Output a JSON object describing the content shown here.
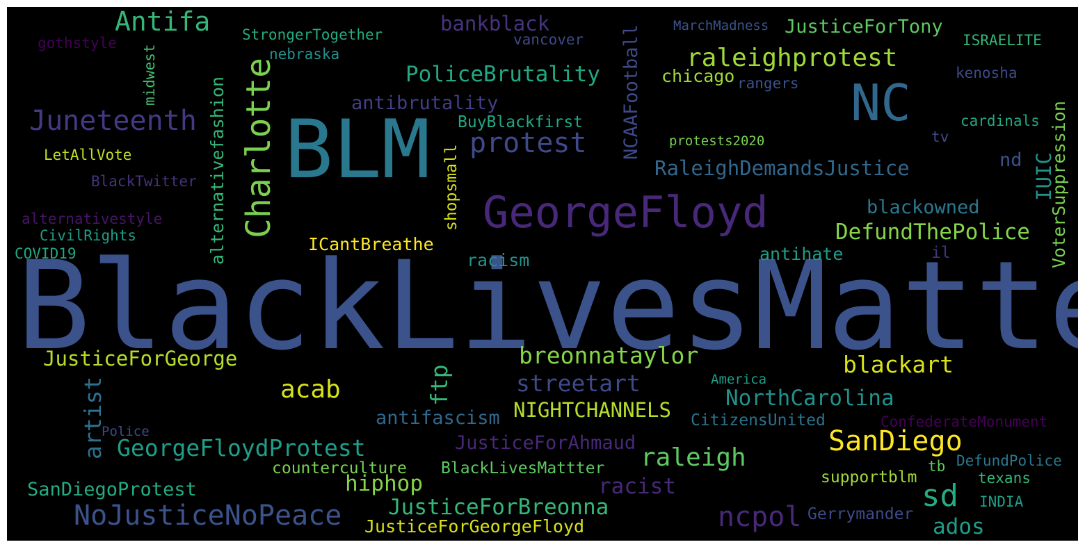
{
  "words": [
    {
      "text": "BlackLivesMatter",
      "color": "#3b528b"
    },
    {
      "text": "BLM",
      "color": "#2a788e"
    },
    {
      "text": "GeorgeFloyd",
      "color": "#482878"
    },
    {
      "text": "NC",
      "color": "#31688e"
    },
    {
      "text": "Charlotte",
      "color": "#7ad151"
    },
    {
      "text": "Juneteenth",
      "color": "#443983"
    },
    {
      "text": "Antifa",
      "color": "#35b779"
    },
    {
      "text": "protest",
      "color": "#3e4a89"
    },
    {
      "text": "raleighprotest",
      "color": "#a0da39"
    },
    {
      "text": "RaleighDemandsJustice",
      "color": "#31688e"
    },
    {
      "text": "SanDiego",
      "color": "#fde725"
    },
    {
      "text": "NoJusticeNoPeace",
      "color": "#3b528b"
    },
    {
      "text": "sd",
      "color": "#25ab82"
    },
    {
      "text": "ncpol",
      "color": "#482878"
    },
    {
      "text": "breonnataylor",
      "color": "#86d549"
    },
    {
      "text": "raleigh",
      "color": "#5ec962"
    },
    {
      "text": "GeorgeFloydProtest",
      "color": "#1f9e89"
    },
    {
      "text": "JusticeForBreonna",
      "color": "#35b779"
    },
    {
      "text": "acab",
      "color": "#d8e219"
    },
    {
      "text": "blackart",
      "color": "#d8e219"
    },
    {
      "text": "NorthCarolina",
      "color": "#21918c"
    },
    {
      "text": "streetart",
      "color": "#3e4a89"
    },
    {
      "text": "DefundThePolice",
      "color": "#86d549"
    },
    {
      "text": "PoliceBrutality",
      "color": "#22a884"
    },
    {
      "text": "JusticeForGeorge",
      "color": "#b5de2b"
    },
    {
      "text": "bankblack",
      "color": "#46337e"
    },
    {
      "text": "JusticeForTony",
      "color": "#5ec962"
    },
    {
      "text": "NIGHTCHANNELS",
      "color": "#b5de2b"
    },
    {
      "text": "antifascism",
      "color": "#31688e"
    },
    {
      "text": "hiphop",
      "color": "#86d549"
    },
    {
      "text": "racist",
      "color": "#482878"
    },
    {
      "text": "JusticeForAhmaud",
      "color": "#482878"
    },
    {
      "text": "blackowned",
      "color": "#2a788e"
    },
    {
      "text": "ados",
      "color": "#1f9e89"
    },
    {
      "text": "artist",
      "color": "#2c728e"
    },
    {
      "text": "ftp",
      "color": "#35b779"
    },
    {
      "text": "antibrutality",
      "color": "#433e85"
    },
    {
      "text": "SanDiegoProtest",
      "color": "#25ab82"
    },
    {
      "text": "ICantBreathe",
      "color": "#fde725"
    },
    {
      "text": "racism",
      "color": "#21918c"
    },
    {
      "text": "BlackLivesMattter",
      "color": "#5ec962"
    },
    {
      "text": "counterculture",
      "color": "#7ad151"
    },
    {
      "text": "JusticeForGeorgeFloyd",
      "color": "#d8e219"
    },
    {
      "text": "BuyBlackfirst",
      "color": "#22a884"
    },
    {
      "text": "chicago",
      "color": "#a0da39"
    },
    {
      "text": "antihate",
      "color": "#1f9e89"
    },
    {
      "text": "supportblm",
      "color": "#a0da39"
    },
    {
      "text": "Gerrymander",
      "color": "#3e4a89"
    },
    {
      "text": "CitizensUnited",
      "color": "#2c728e"
    },
    {
      "text": "ConfederateMonument",
      "color": "#440154"
    },
    {
      "text": "DefundPolice",
      "color": "#2a788e"
    },
    {
      "text": "texans",
      "color": "#35b779"
    },
    {
      "text": "INDIA",
      "color": "#1f9e89"
    },
    {
      "text": "America",
      "color": "#1f9e89"
    },
    {
      "text": "nd",
      "color": "#3b528b"
    },
    {
      "text": "cardinals",
      "color": "#22a884"
    },
    {
      "text": "protests2020",
      "color": "#7ad151"
    },
    {
      "text": "kenosha",
      "color": "#3e4a89"
    },
    {
      "text": "rangers",
      "color": "#3b528b"
    },
    {
      "text": "ISRAELITE",
      "color": "#35b779"
    },
    {
      "text": "MarchMadness",
      "color": "#3b528b"
    },
    {
      "text": "vancover",
      "color": "#3e4a89"
    },
    {
      "text": "nebraska",
      "color": "#21918c"
    },
    {
      "text": "StrongerTogether",
      "color": "#25ab82"
    },
    {
      "text": "gothstyle",
      "color": "#440154"
    },
    {
      "text": "LetAllVote",
      "color": "#c2df23"
    },
    {
      "text": "BlackTwitter",
      "color": "#46337e"
    },
    {
      "text": "alternativestyle",
      "color": "#481467"
    },
    {
      "text": "CivilRights",
      "color": "#1f9e89"
    },
    {
      "text": "COVID19",
      "color": "#22a884"
    },
    {
      "text": "Police",
      "color": "#3e4a89"
    },
    {
      "text": "tv",
      "color": "#3e4a89"
    },
    {
      "text": "il",
      "color": "#46337e"
    },
    {
      "text": "tb",
      "color": "#5ec962"
    },
    {
      "text": "IUIC",
      "color": "#21918c"
    },
    {
      "text": "VoterSuppression",
      "color": "#7ad151"
    },
    {
      "text": "NCAAFootball",
      "color": "#3e4a89"
    },
    {
      "text": "shopsmall",
      "color": "#d8e219"
    },
    {
      "text": "alternativefashion",
      "color": "#35b779"
    },
    {
      "text": "midwest",
      "color": "#44bf70"
    }
  ]
}
